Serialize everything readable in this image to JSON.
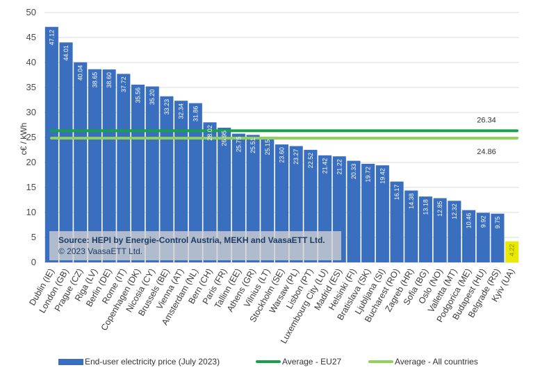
{
  "chart_data": {
    "type": "bar",
    "ylabel": "c€ / kWh",
    "ylim": [
      0,
      50
    ],
    "yticks": [
      0,
      5,
      10,
      15,
      20,
      25,
      30,
      35,
      40,
      45,
      50
    ],
    "categories": [
      "Dublin (IE)",
      "London (GB)",
      "Prague (CZ)",
      "Riga (LV)",
      "Berlin (DE)",
      "Rome (IT)",
      "Copenhagen (DK)",
      "Nicosia (CY)",
      "Brussels (BE)",
      "Vienna (AT)",
      "Amsterdam (NL)",
      "Bern (CH)",
      "Paris (FR)",
      "Tallinn (EE)",
      "Athens (GR)",
      "Vilnius (LT)",
      "Stockholm (SE)",
      "Warsaw (PL)",
      "Lisbon (PT)",
      "Luxembourg City (LU)",
      "Madrid (ES)",
      "Helsinki (FI)",
      "Bratislava (SK)",
      "Ljubljana (SI)",
      "Bucharest (RO)",
      "Zagreb (HR)",
      "Sofia (BG)",
      "Oslo (NO)",
      "Valletta (MT)",
      "Podgorica (ME)",
      "Budapest (HU)",
      "Belgrade (RS)",
      "Kyiv (UA)"
    ],
    "series": [
      {
        "name": "End-user electricity price (July 2023)",
        "color": "#3a6fbf",
        "values": [
          47.12,
          44.01,
          40.04,
          38.65,
          38.6,
          37.72,
          35.56,
          35.2,
          33.23,
          32.34,
          31.86,
          28.02,
          26.95,
          25.75,
          25.51,
          25.15,
          23.6,
          23.27,
          22.52,
          21.42,
          21.22,
          20.33,
          19.72,
          19.42,
          16.17,
          14.38,
          13.18,
          12.85,
          12.32,
          10.46,
          9.92,
          9.75,
          4.22
        ],
        "data_labels": [
          "47.12",
          "44.01",
          "40.04",
          "38.65",
          "38.60",
          "37.72",
          "35.56",
          "35.20",
          "33.23",
          "32.34",
          "31.86",
          "28.02",
          "26.95",
          "25.75",
          "25.51",
          "25.15",
          "23.60",
          "23.27",
          "22.52",
          "21.42",
          "21.22",
          "20.33",
          "19.72",
          "19.42",
          "16.17",
          "14.38",
          "13.18",
          "12.85",
          "12.32",
          "10.46",
          "9.92",
          "9.75",
          "4.22"
        ],
        "highlight": {
          "category": "Kyiv (UA)",
          "color": "#e8e800"
        }
      },
      {
        "name": "Average - EU27",
        "type": "hline",
        "value": 26.34,
        "label": "26.34",
        "color": "#1aa04a"
      },
      {
        "name": "Average - All countries",
        "type": "hline",
        "value": 24.86,
        "label": "24.86",
        "color": "#8fd15a"
      }
    ],
    "grid": "horizontal",
    "legend_position": "bottom"
  },
  "source": {
    "line1": "Source: HEPI by Energie-Control Austria, MEKH and VaasaETT Ltd.",
    "line2": "© 2023 VaasaETT Ltd."
  }
}
